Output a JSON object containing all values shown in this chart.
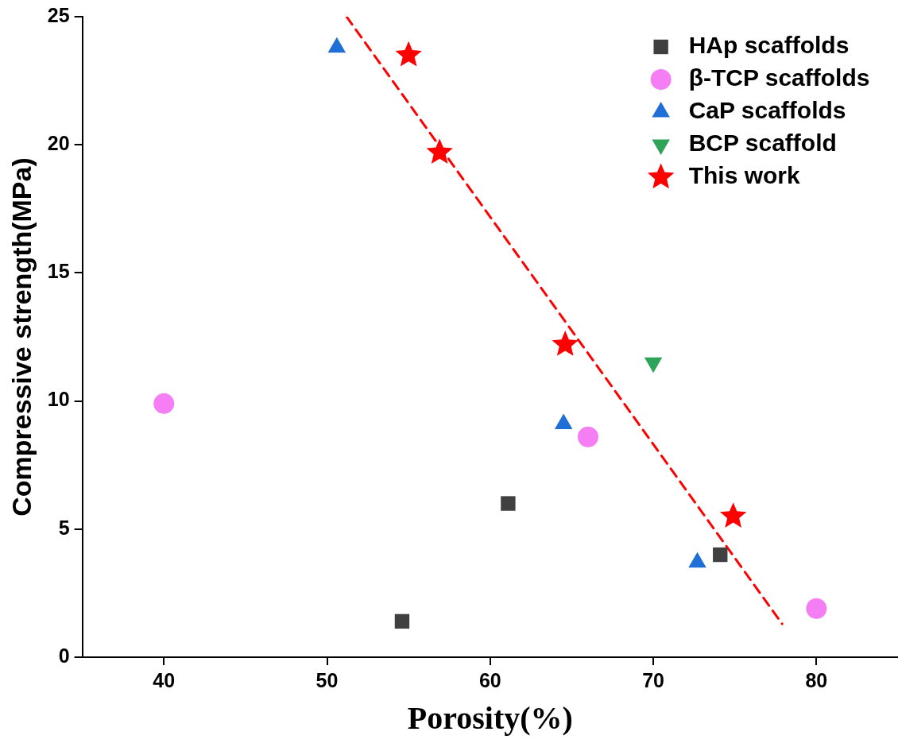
{
  "chart_data": {
    "type": "scatter",
    "xlabel": "Porosity(%)",
    "ylabel": "Compressive strength(MPa)",
    "xlim": [
      35,
      85
    ],
    "xticks": [
      40,
      50,
      60,
      70,
      80
    ],
    "ylim": [
      0,
      25
    ],
    "yticks": [
      0,
      5,
      10,
      15,
      20,
      25
    ],
    "grid": false,
    "legend": "top right",
    "series": [
      {
        "name": "HAp scaffolds",
        "color": "#404040",
        "marker": "square",
        "x": [
          54.6,
          61.1,
          74.1
        ],
        "values": [
          1.4,
          6.0,
          4.0
        ]
      },
      {
        "name": "β-TCP scaffolds",
        "color": "#f57ef5",
        "marker": "circle",
        "x": [
          40,
          66,
          80
        ],
        "values": [
          9.9,
          8.6,
          1.9
        ]
      },
      {
        "name": "CaP scaffolds",
        "color": "#1f6fd6",
        "marker": "triangle",
        "x": [
          50.6,
          64.5,
          72.7
        ],
        "values": [
          23.8,
          9.1,
          3.7
        ]
      },
      {
        "name": "BCP scaffold",
        "color": "#2ea35a",
        "marker": "triangle-down",
        "x": [
          70
        ],
        "values": [
          11.5
        ]
      },
      {
        "name": "This work",
        "color": "#ff0000",
        "marker": "star",
        "x": [
          55,
          56.9,
          64.6,
          74.9
        ],
        "values": [
          23.5,
          19.7,
          12.2,
          5.5
        ]
      },
      {
        "type": "line",
        "color": "#ff0000",
        "marker": "none",
        "line_style": "dashed",
        "x": [
          51.2,
          77.9
        ],
        "values": [
          25,
          1.3
        ]
      }
    ]
  }
}
